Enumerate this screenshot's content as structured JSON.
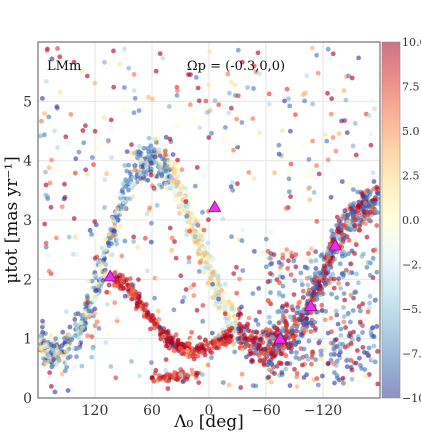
{
  "chart_data": {
    "type": "scatter",
    "xlabel": "Λ₀ [deg]",
    "ylabel": "μtot [mas yr⁻¹]",
    "xlim": [
      180,
      -180
    ],
    "ylim": [
      0,
      6
    ],
    "x_ticks": [
      120,
      60,
      0,
      -60,
      -120
    ],
    "x_tick_labels": [
      "120",
      "60",
      "0",
      "−60",
      "−120"
    ],
    "y_ticks": [
      0,
      1,
      2,
      3,
      4,
      5
    ],
    "y_tick_labels": [
      "0",
      "1",
      "2",
      "3",
      "4",
      "5"
    ],
    "grid": true,
    "annotations": [
      "LMm",
      "Ωp = (-0.3,0,0)"
    ],
    "colorbar": {
      "range": [
        -10,
        10
      ],
      "ticks": [
        10,
        7.5,
        5,
        2.5,
        0,
        -2.5,
        -5,
        -7.5,
        -10
      ],
      "tick_labels": [
        "10.0",
        "7.5",
        "5.0",
        "2.5",
        "0.0",
        "−2.",
        "−5.",
        "−7.",
        "−10"
      ],
      "colormap": [
        "#313695",
        "#4575b4",
        "#74add1",
        "#abd9e9",
        "#e0f3f8",
        "#ffffbf",
        "#fee090",
        "#fdae61",
        "#f46d43",
        "#d73027",
        "#a50026"
      ]
    },
    "markers": {
      "color": "#e832e8",
      "points": [
        {
          "x": 104,
          "y": 2.05
        },
        {
          "x": -6,
          "y": 3.22
        },
        {
          "x": -75,
          "y": 1.0
        },
        {
          "x": -107,
          "y": 1.55
        },
        {
          "x": -133,
          "y": 2.57
        }
      ]
    },
    "bands": [
      {
        "name": "upper",
        "points": [
          [
            178,
            0.95
          ],
          [
            165,
            0.7
          ],
          [
            150,
            0.85
          ],
          [
            135,
            1.2
          ],
          [
            120,
            1.8
          ],
          [
            105,
            2.6
          ],
          [
            90,
            3.4
          ],
          [
            75,
            3.85
          ],
          [
            60,
            4.05
          ],
          [
            45,
            3.85
          ],
          [
            30,
            3.45
          ],
          [
            15,
            2.8
          ],
          [
            0,
            2.2
          ],
          [
            -15,
            1.6
          ],
          [
            -30,
            1.15
          ],
          [
            -45,
            0.95
          ],
          [
            -60,
            0.85
          ],
          [
            -75,
            0.95
          ],
          [
            -90,
            1.1
          ],
          [
            -105,
            1.5
          ],
          [
            -120,
            2.1
          ],
          [
            -135,
            2.7
          ],
          [
            -150,
            3.1
          ],
          [
            -165,
            3.25
          ],
          [
            -178,
            3.3
          ]
        ]
      },
      {
        "name": "lower",
        "points": [
          [
            100,
            2.0
          ],
          [
            88,
            1.95
          ],
          [
            75,
            1.65
          ],
          [
            60,
            1.3
          ],
          [
            45,
            1.0
          ],
          [
            30,
            0.85
          ],
          [
            15,
            0.8
          ],
          [
            0,
            0.85
          ],
          [
            -10,
            0.95
          ],
          [
            -25,
            1.05
          ]
        ]
      }
    ]
  }
}
